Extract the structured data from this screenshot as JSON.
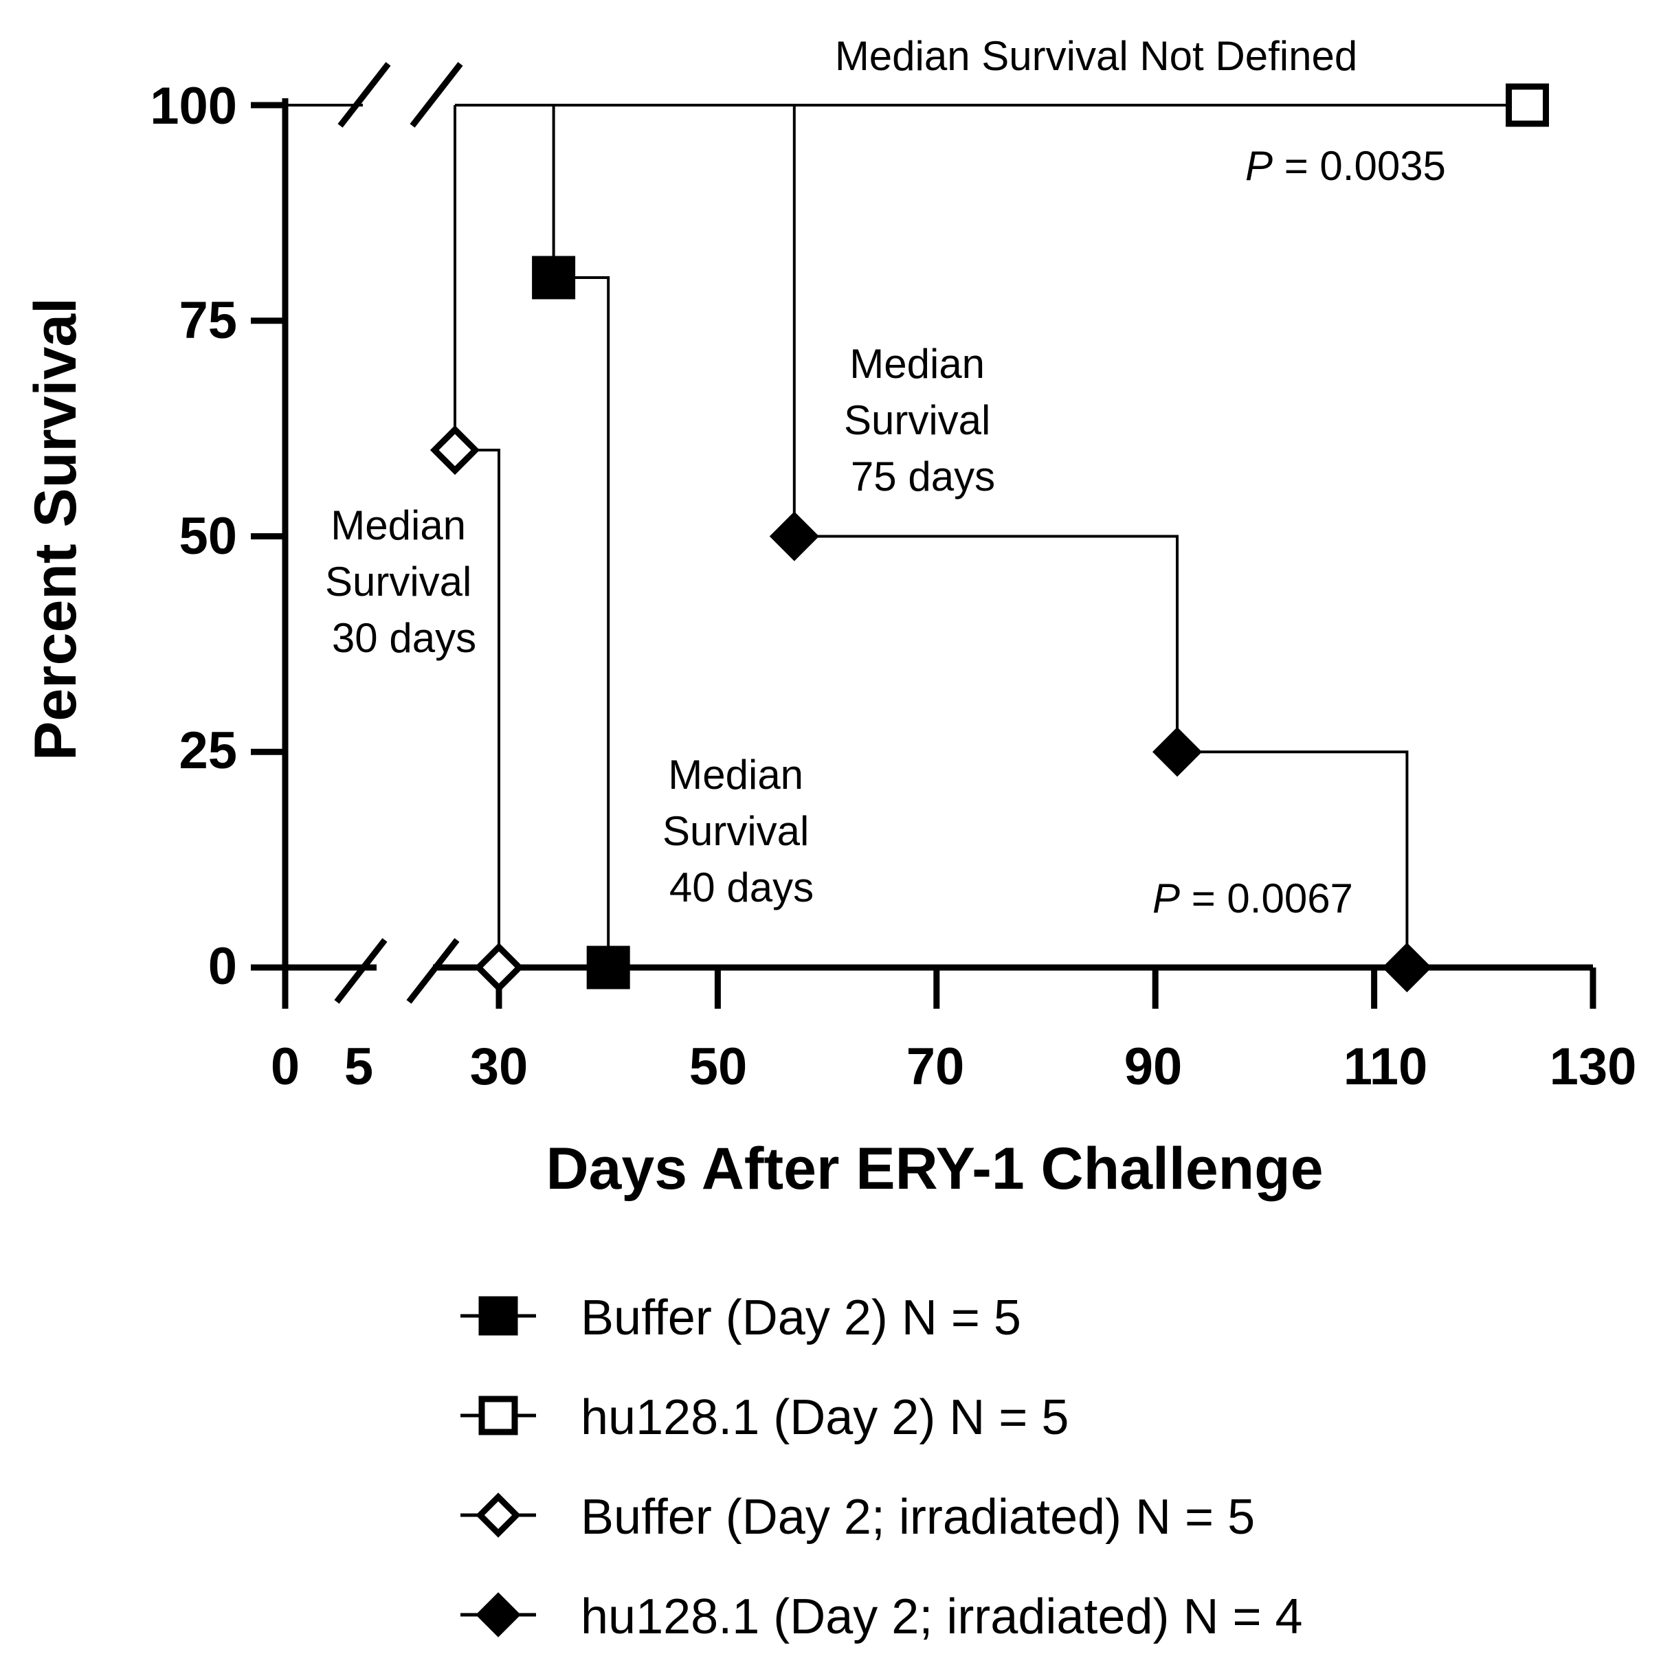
{
  "chart_data": {
    "type": "line",
    "subtype": "kaplan-meier-survival",
    "title": "",
    "xlabel": "Days After ERY-1 Challenge",
    "ylabel": "Percent Survival",
    "xlim": [
      0,
      130
    ],
    "ylim": [
      0,
      100
    ],
    "x_axis_break": "between 5 and 30",
    "x_ticks": [
      "0",
      "5",
      "30",
      "50",
      "70",
      "90",
      "110",
      "130"
    ],
    "y_ticks": [
      "0",
      "25",
      "50",
      "75",
      "100"
    ],
    "grid": false,
    "legend_position": "bottom",
    "series": [
      {
        "name": "Buffer (Day 2) N = 5",
        "marker": "filled-square",
        "color": "#000000",
        "steps": [
          [
            25,
            100
          ],
          [
            35,
            100
          ],
          [
            35,
            80
          ],
          [
            40,
            80
          ],
          [
            40,
            0
          ]
        ],
        "points": [
          [
            35,
            80
          ],
          [
            40,
            0
          ]
        ]
      },
      {
        "name": "hu128.1 (Day 2) N = 5",
        "marker": "open-square",
        "color": "#000000",
        "steps": [
          [
            25,
            100
          ],
          [
            124,
            100
          ]
        ],
        "points": [
          [
            124,
            100
          ]
        ]
      },
      {
        "name": "Buffer (Day 2; irradiated) N = 5",
        "marker": "open-diamond",
        "color": "#000000",
        "steps": [
          [
            25,
            100
          ],
          [
            25,
            60
          ],
          [
            30,
            60
          ],
          [
            30,
            0
          ]
        ],
        "points": [
          [
            25,
            60
          ],
          [
            30,
            0
          ]
        ]
      },
      {
        "name": "hu128.1 (Day 2; irradiated) N = 4",
        "marker": "filled-diamond",
        "color": "#000000",
        "steps": [
          [
            57,
            100
          ],
          [
            57,
            50
          ],
          [
            92,
            50
          ],
          [
            92,
            25
          ],
          [
            113,
            25
          ],
          [
            113,
            0
          ]
        ],
        "points": [
          [
            57,
            50
          ],
          [
            92,
            25
          ],
          [
            113,
            0
          ]
        ]
      }
    ],
    "annotations": {
      "not_defined": "Median Survival Not Defined",
      "p1_italic": "P",
      "p1_rest": " = 0.0035",
      "m75": [
        "Median",
        "Survival",
        "75 days"
      ],
      "m30": [
        "Median",
        "Survival",
        "30 days"
      ],
      "m40": [
        "Median",
        "Survival",
        "40 days"
      ],
      "p2_italic": "P",
      "p2_rest": " = 0.0067"
    }
  }
}
